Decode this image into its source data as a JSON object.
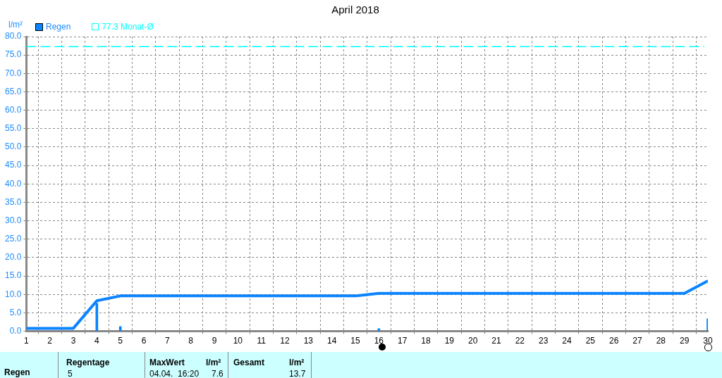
{
  "chart_data": {
    "type": "line",
    "title": "April 2018",
    "ylabel": "l/m²",
    "series": [
      {
        "color": "#0a84ff",
        "x": [
          1,
          3,
          4,
          5,
          15,
          16,
          29,
          30
        ],
        "values": [
          0.8,
          0.8,
          8.3,
          9.6,
          9.6,
          10.3,
          10.3,
          13.7
        ]
      },
      {
        "type": "bar",
        "name": "Regen",
        "color": "#0a84ff",
        "x": [
          4,
          5,
          16,
          30
        ],
        "values": [
          7.6,
          1.3,
          0.7,
          3.4
        ]
      }
    ],
    "xlim": [
      1,
      30
    ],
    "xticks": [
      1,
      2,
      3,
      4,
      5,
      6,
      7,
      8,
      9,
      10,
      11,
      12,
      13,
      14,
      15,
      16,
      17,
      18,
      19,
      20,
      21,
      22,
      23,
      24,
      25,
      26,
      27,
      28,
      29,
      30
    ],
    "ylim": [
      0,
      80
    ],
    "yticks": [
      {
        "value": 0,
        "label": "0.0"
      },
      {
        "value": 5,
        "label": "5.0"
      },
      {
        "value": 10,
        "label": "10.0"
      },
      {
        "value": 15,
        "label": "15.0"
      },
      {
        "value": 20,
        "label": "20.0"
      },
      {
        "value": 25,
        "label": "25.0"
      },
      {
        "value": 30,
        "label": "30.0"
      },
      {
        "value": 35,
        "label": "35.0"
      },
      {
        "value": 40,
        "label": "40.0"
      },
      {
        "value": 45,
        "label": "45.0"
      },
      {
        "value": 50,
        "label": "50.0"
      },
      {
        "value": 55,
        "label": "55.0"
      },
      {
        "value": 60,
        "label": "60.0"
      },
      {
        "value": 65,
        "label": "65.0"
      },
      {
        "value": 70,
        "label": "70.0"
      },
      {
        "value": 75,
        "label": "75.0"
      },
      {
        "value": 80,
        "label": "80.0"
      }
    ],
    "ref_lines": [
      {
        "axis": "y",
        "value": 77.3,
        "label": "77.3 Monat-Ø",
        "color": "#00ffff",
        "line_style": "dashed"
      }
    ],
    "grid": true,
    "legend": "top left",
    "annotations": [
      "Regen",
      "Regentage",
      "5",
      "MaxWert",
      "l/m²",
      "04.04.  16:20",
      "7.6",
      "Gesamt",
      "l/m²",
      "13.7"
    ]
  }
}
